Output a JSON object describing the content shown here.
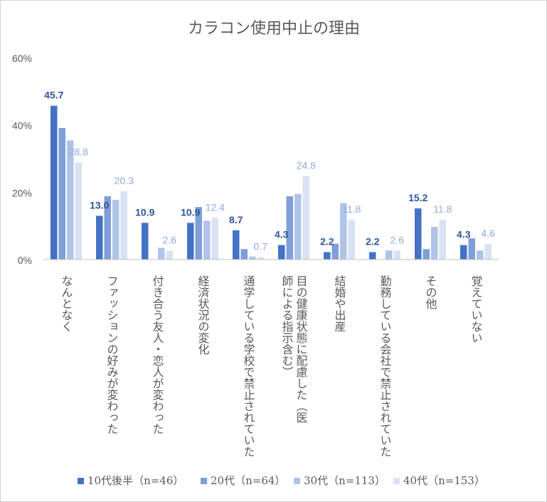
{
  "chart_data": {
    "type": "bar",
    "title": "カラコン使用中止の理由",
    "xlabel": "",
    "ylabel": "",
    "ylim": [
      0,
      60
    ],
    "yticks": [
      "0%",
      "20%",
      "40%",
      "60%"
    ],
    "grid": false,
    "legend_position": "bottom",
    "categories": [
      [
        "なんとなく"
      ],
      [
        "ファッションの好みが変わった"
      ],
      [
        "付き合う友人・恋人が変わった"
      ],
      [
        "経済状況の変化"
      ],
      [
        "通学している学校で禁止されていた"
      ],
      [
        "目の健康状態に配慮した（医",
        "師による指示含む）"
      ],
      [
        "結婚や出産"
      ],
      [
        "勤務している会社で禁止されていた"
      ],
      [
        "その他"
      ],
      [
        "覚えていない"
      ]
    ],
    "series": [
      {
        "name": "10代後半（n=46）",
        "color": "#4472c4",
        "label_color": "#2f5597",
        "values": [
          45.7,
          13.0,
          10.9,
          10.9,
          8.7,
          4.3,
          2.2,
          2.2,
          15.2,
          4.3
        ],
        "labels": [
          "45.7",
          "13.0",
          "10.9",
          "10.9",
          "8.7",
          "4.3",
          "2.2",
          "2.2",
          "15.2",
          "4.3"
        ]
      },
      {
        "name": "20代（n=64）",
        "color": "#7f9fd8",
        "values": [
          39.1,
          18.8,
          0.0,
          15.6,
          3.1,
          18.8,
          4.7,
          0.0,
          3.1,
          6.3
        ]
      },
      {
        "name": "30代（n=113）",
        "color": "#b0c4e8",
        "values": [
          35.4,
          17.7,
          3.5,
          11.5,
          0.9,
          19.5,
          16.8,
          2.7,
          9.7,
          2.7
        ]
      },
      {
        "name": "40代（n=153）",
        "color": "#d9e2f3",
        "label_color": "#8faadc",
        "values": [
          28.8,
          20.3,
          2.6,
          12.4,
          0.7,
          24.8,
          11.8,
          2.6,
          11.8,
          4.6
        ],
        "labels": [
          "28.8",
          "20.3",
          "2.6",
          "12.4",
          "0.7",
          "24.8",
          "11.8",
          "2.6",
          "11.8",
          "4.6"
        ]
      }
    ]
  }
}
